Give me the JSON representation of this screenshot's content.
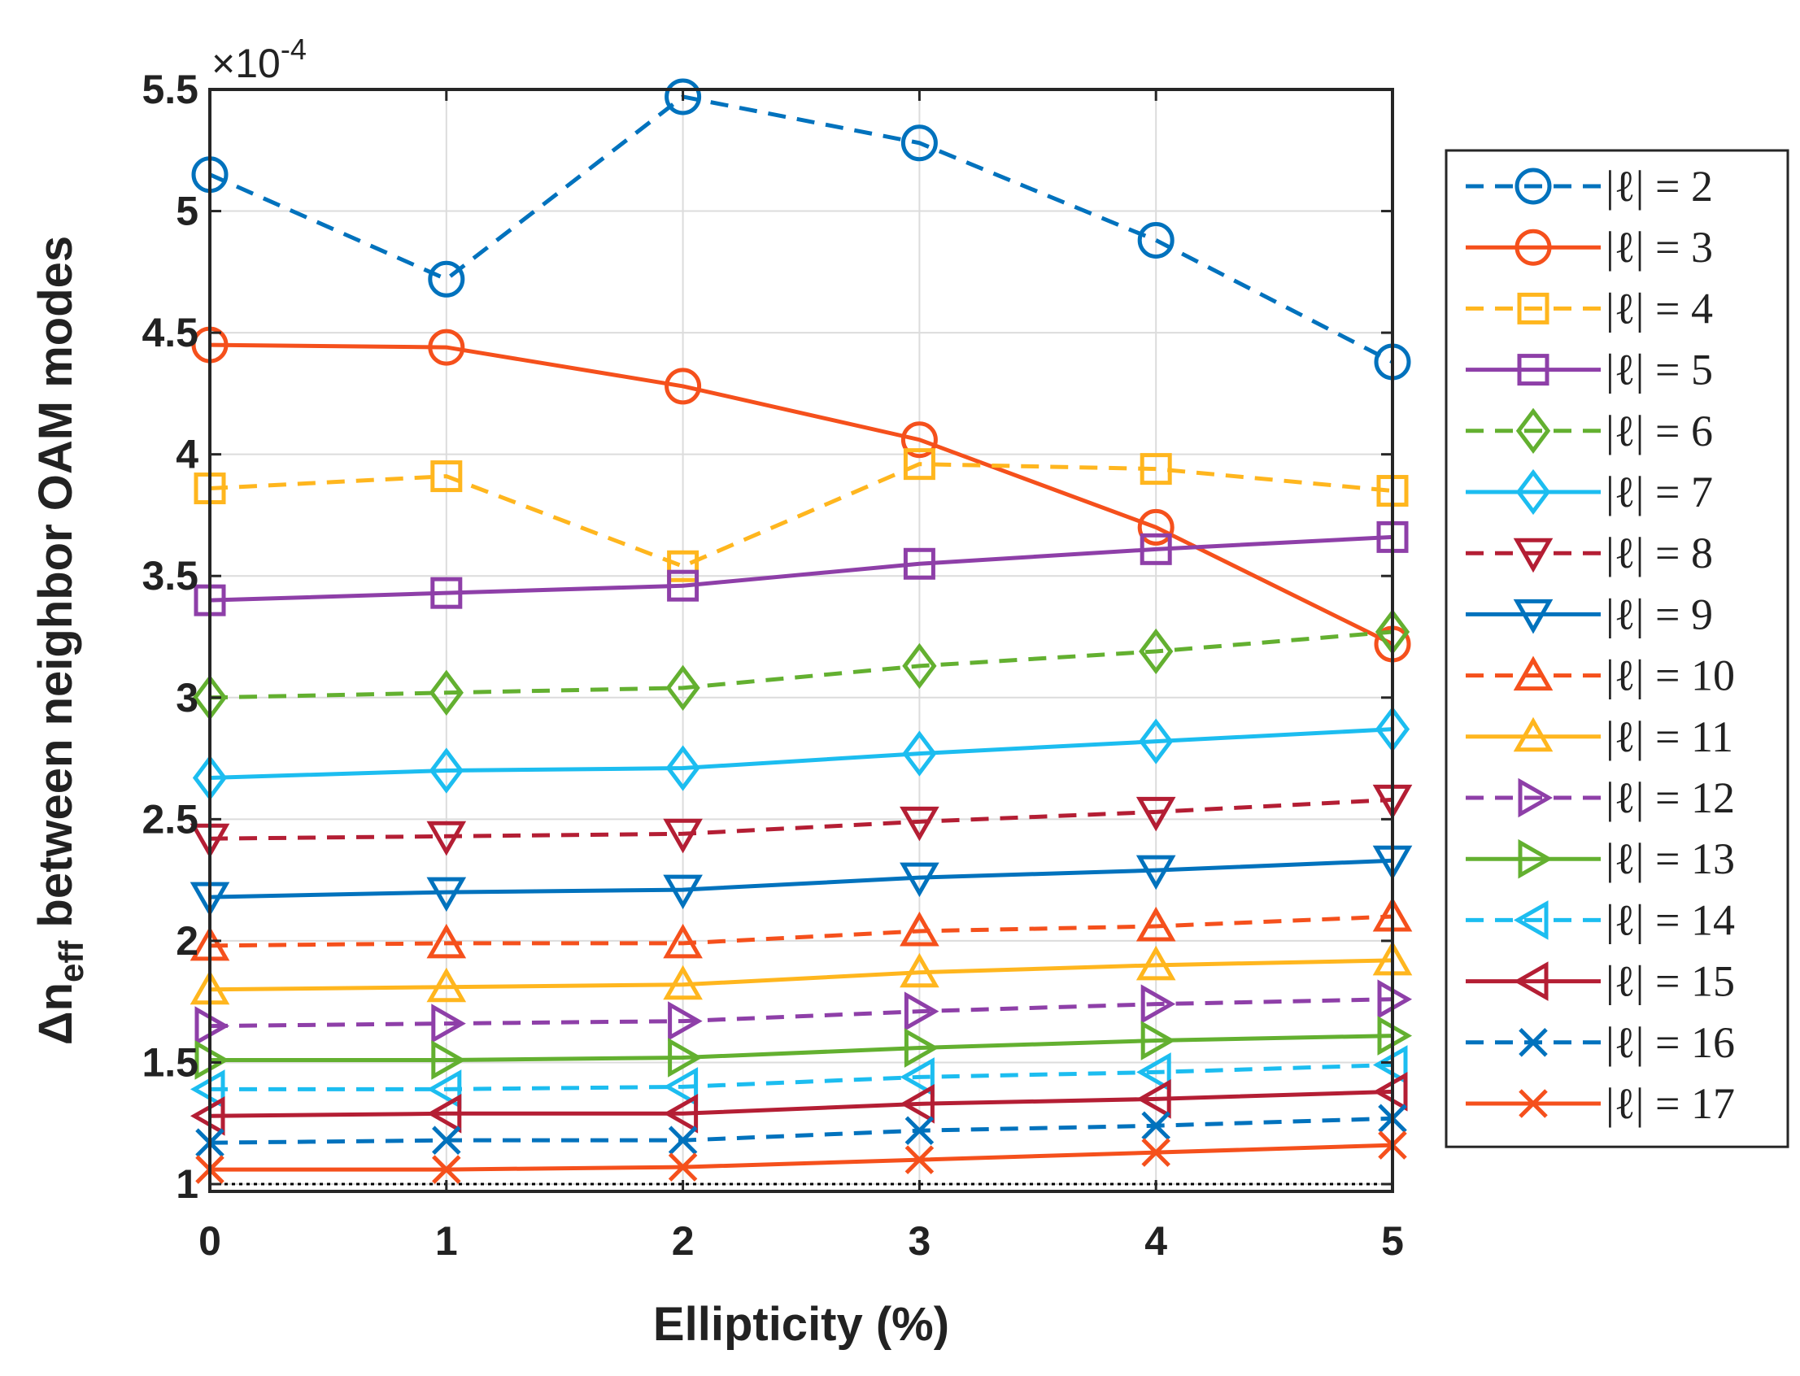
{
  "chart_data": {
    "type": "line",
    "title": "",
    "xlabel": "Ellipticity (%)",
    "ylabel_prefix": "Δn",
    "ylabel_sub": "eff",
    "ylabel_suffix": " between neighbor OAM modes",
    "y_exponent_prefix": "×10",
    "y_exponent_power": "-4",
    "x": [
      0,
      1,
      2,
      3,
      4,
      5
    ],
    "xlim": [
      0,
      5
    ],
    "ylim": [
      0.97,
      5.5
    ],
    "x_ticks": [
      "0",
      "1",
      "2",
      "3",
      "4",
      "5"
    ],
    "y_ticks": [
      {
        "value": 1,
        "label": "1"
      },
      {
        "value": 1.5,
        "label": "1.5"
      },
      {
        "value": 2,
        "label": "2"
      },
      {
        "value": 2.5,
        "label": "2.5"
      },
      {
        "value": 3,
        "label": "3"
      },
      {
        "value": 3.5,
        "label": "3.5"
      },
      {
        "value": 4,
        "label": "4"
      },
      {
        "value": 4.5,
        "label": "4.5"
      },
      {
        "value": 5,
        "label": "5"
      },
      {
        "value": 5.5,
        "label": "5.5"
      }
    ],
    "grid": true,
    "legend_position": "outside-right",
    "reference_line": {
      "y": 1,
      "style": "dotted",
      "color": "#000000"
    },
    "series": [
      {
        "name": "|ℓ| = 2",
        "color": "#0072BD",
        "dash": true,
        "marker": "circle",
        "values": [
          5.15,
          4.72,
          5.47,
          5.28,
          4.88,
          4.38
        ]
      },
      {
        "name": "|ℓ| = 3",
        "color": "#F5501C",
        "dash": false,
        "marker": "circle",
        "values": [
          4.45,
          4.44,
          4.28,
          4.06,
          3.7,
          3.22
        ]
      },
      {
        "name": "|ℓ| = 4",
        "color": "#FFB61E",
        "dash": true,
        "marker": "square",
        "values": [
          3.86,
          3.91,
          3.54,
          3.96,
          3.94,
          3.85
        ]
      },
      {
        "name": "|ℓ| = 5",
        "color": "#8E3FA8",
        "dash": false,
        "marker": "square",
        "values": [
          3.4,
          3.43,
          3.46,
          3.55,
          3.61,
          3.66
        ]
      },
      {
        "name": "|ℓ| = 6",
        "color": "#63B030",
        "dash": true,
        "marker": "diamond",
        "values": [
          3.0,
          3.02,
          3.04,
          3.13,
          3.19,
          3.27
        ]
      },
      {
        "name": "|ℓ| = 7",
        "color": "#1CBDF0",
        "dash": false,
        "marker": "diamond",
        "values": [
          2.67,
          2.7,
          2.71,
          2.77,
          2.82,
          2.87
        ]
      },
      {
        "name": "|ℓ| = 8",
        "color": "#B41E34",
        "dash": true,
        "marker": "triangle-down",
        "values": [
          2.42,
          2.43,
          2.44,
          2.49,
          2.53,
          2.58
        ]
      },
      {
        "name": "|ℓ| = 9",
        "color": "#0072BD",
        "dash": false,
        "marker": "triangle-down",
        "values": [
          2.18,
          2.2,
          2.21,
          2.26,
          2.29,
          2.33
        ]
      },
      {
        "name": "|ℓ| = 10",
        "color": "#F5501C",
        "dash": true,
        "marker": "triangle-up",
        "values": [
          1.98,
          1.99,
          1.99,
          2.04,
          2.06,
          2.1
        ]
      },
      {
        "name": "|ℓ| = 11",
        "color": "#FFB61E",
        "dash": false,
        "marker": "triangle-up",
        "values": [
          1.8,
          1.81,
          1.82,
          1.87,
          1.9,
          1.92
        ]
      },
      {
        "name": "|ℓ| = 12",
        "color": "#8E3FA8",
        "dash": true,
        "marker": "triangle-right",
        "values": [
          1.65,
          1.66,
          1.67,
          1.71,
          1.74,
          1.76
        ]
      },
      {
        "name": "|ℓ| = 13",
        "color": "#63B030",
        "dash": false,
        "marker": "triangle-right",
        "values": [
          1.51,
          1.51,
          1.52,
          1.56,
          1.59,
          1.61
        ]
      },
      {
        "name": "|ℓ| = 14",
        "color": "#1CBDF0",
        "dash": true,
        "marker": "triangle-left",
        "values": [
          1.39,
          1.39,
          1.4,
          1.44,
          1.46,
          1.49
        ]
      },
      {
        "name": "|ℓ| = 15",
        "color": "#B41E34",
        "dash": false,
        "marker": "triangle-left",
        "values": [
          1.28,
          1.29,
          1.29,
          1.33,
          1.35,
          1.38
        ]
      },
      {
        "name": "|ℓ| = 16",
        "color": "#0072BD",
        "dash": true,
        "marker": "x",
        "values": [
          1.17,
          1.18,
          1.18,
          1.22,
          1.24,
          1.27
        ]
      },
      {
        "name": "|ℓ| = 17",
        "color": "#F5501C",
        "dash": false,
        "marker": "x",
        "values": [
          1.06,
          1.06,
          1.07,
          1.1,
          1.13,
          1.16
        ]
      }
    ]
  }
}
